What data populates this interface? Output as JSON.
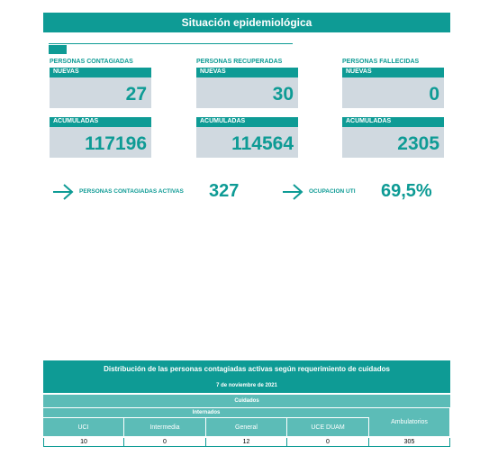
{
  "header": {
    "title": "Situación epidemiológica"
  },
  "cards": [
    {
      "label": "PERSONAS CONTAGIADAS",
      "new_label": "NUEVAS",
      "new_value": "27",
      "total_label": "ACUMULADAS",
      "total_value": "117196"
    },
    {
      "label": "PERSONAS RECUPERADAS",
      "new_label": "NUEVAS",
      "new_value": "30",
      "total_label": "ACUMULADAS",
      "total_value": "114564"
    },
    {
      "label": "PERSONAS FALLECIDAS",
      "new_label": "NUEVAS",
      "new_value": "0",
      "total_label": "ACUMULADAS",
      "total_value": "2305"
    }
  ],
  "indicators": [
    {
      "label": "PERSONAS CONTAGIADAS ACTIVAS",
      "value": "327"
    },
    {
      "label": "OCUPACION UTI",
      "value": "69,5%"
    }
  ],
  "table": {
    "title": "Distribución de las personas contagiadas activas según requerimiento de cuidados",
    "date": "7 de noviembre de 2021",
    "group": "Cuidados",
    "subgroup": "Internados",
    "columns": [
      "UCI",
      "Intermedia",
      "General",
      "UCE DUAM",
      "Ambulatorios"
    ],
    "rows": [
      [
        "10",
        "0",
        "12",
        "0",
        "305"
      ]
    ]
  }
}
